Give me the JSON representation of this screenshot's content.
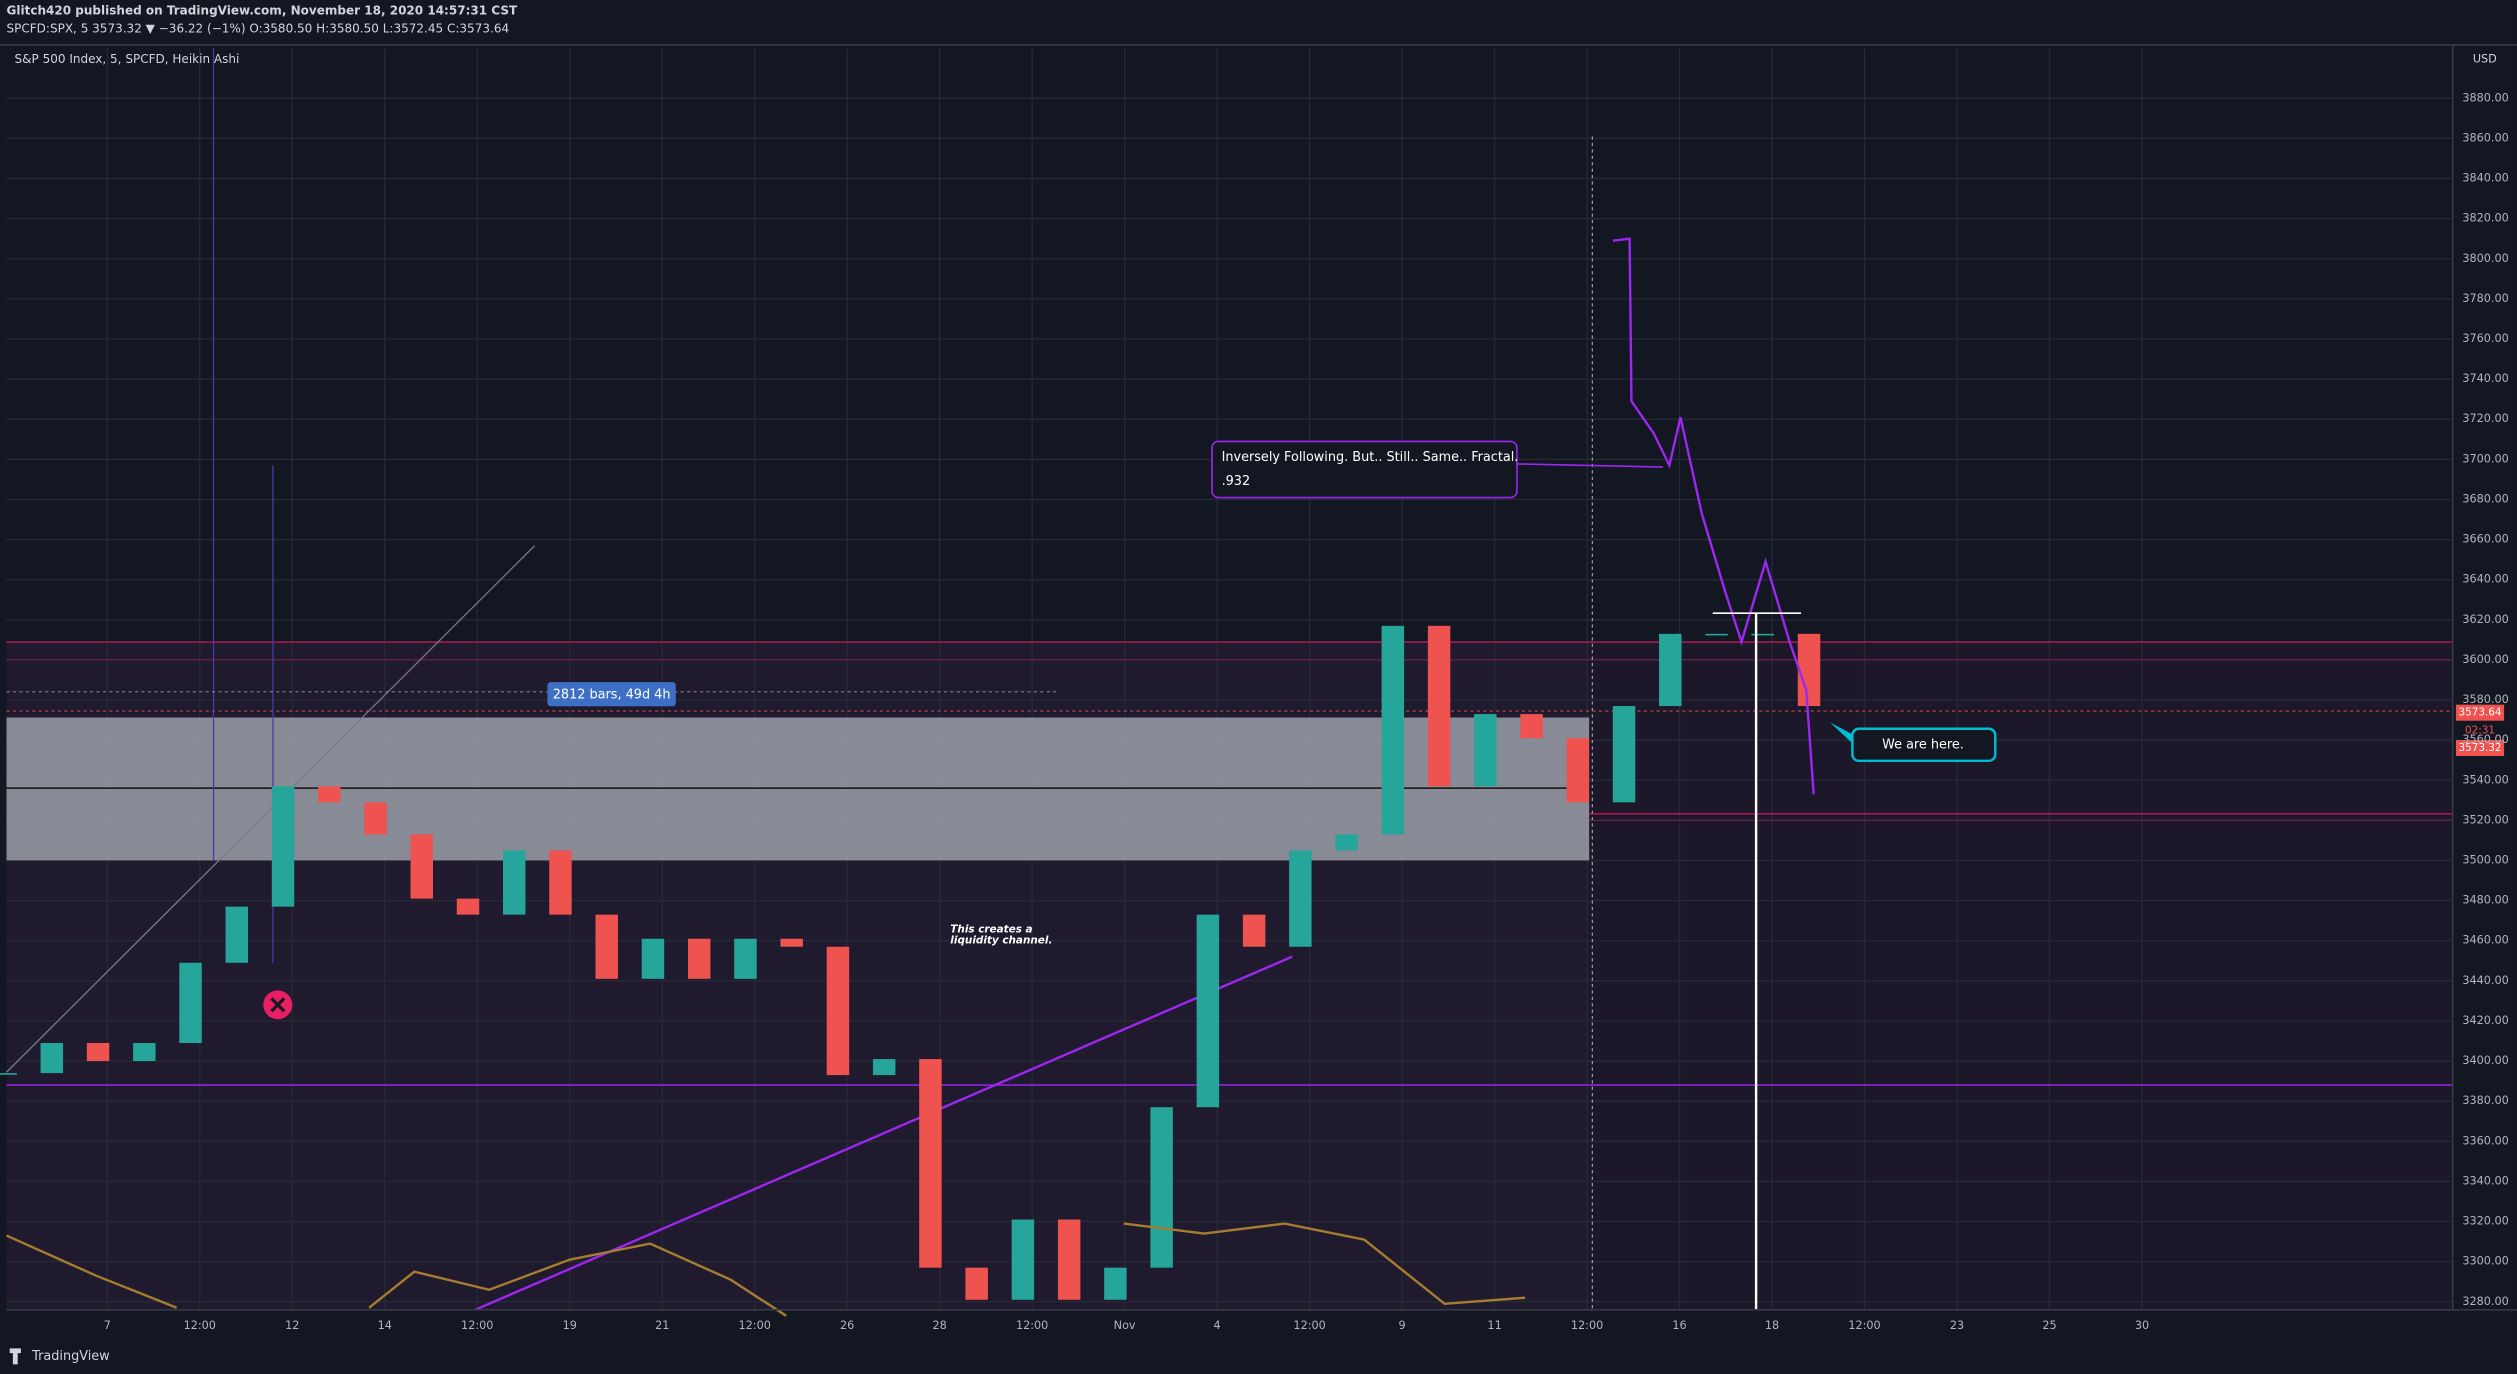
{
  "header": {
    "publisher": "Glitch420 published on TradingView.com, November 18, 2020 14:57:31 CST",
    "quote": "SPCFD:SPX, 5  3573.32 ▼ −36.22 (−1%)  O:3580.50  H:3580.50  L:3572.45  C:3573.64",
    "legend": "S&P 500 Index, 5, SPCFD, Heikin Ashi",
    "currency": "USD"
  },
  "chart_data": {
    "type": "candle-line",
    "ylim": [
      3276,
      3905
    ],
    "yticks": [
      {
        "value": 3280,
        "label": "3280.00"
      },
      {
        "value": 3300,
        "label": "3300.00"
      },
      {
        "value": 3320,
        "label": "3320.00"
      },
      {
        "value": 3340,
        "label": "3340.00"
      },
      {
        "value": 3360,
        "label": "3360.00"
      },
      {
        "value": 3380,
        "label": "3380.00"
      },
      {
        "value": 3400,
        "label": "3400.00"
      },
      {
        "value": 3420,
        "label": "3420.00"
      },
      {
        "value": 3440,
        "label": "3440.00"
      },
      {
        "value": 3460,
        "label": "3460.00"
      },
      {
        "value": 3480,
        "label": "3480.00"
      },
      {
        "value": 3500,
        "label": "3500.00"
      },
      {
        "value": 3520,
        "label": "3520.00"
      },
      {
        "value": 3540,
        "label": "3540.00"
      },
      {
        "value": 3560,
        "label": "3560.00"
      },
      {
        "value": 3580,
        "label": "3580.00"
      },
      {
        "value": 3600,
        "label": "3600.00"
      },
      {
        "value": 3620,
        "label": "3620.00"
      },
      {
        "value": 3640,
        "label": "3640.00"
      },
      {
        "value": 3660,
        "label": "3660.00"
      },
      {
        "value": 3680,
        "label": "3680.00"
      },
      {
        "value": 3700,
        "label": "3700.00"
      },
      {
        "value": 3720,
        "label": "3720.00"
      },
      {
        "value": 3740,
        "label": "3740.00"
      },
      {
        "value": 3760,
        "label": "3760.00"
      },
      {
        "value": 3780,
        "label": "3780.00"
      },
      {
        "value": 3800,
        "label": "3800.00"
      },
      {
        "value": 3820,
        "label": "3820.00"
      },
      {
        "value": 3840,
        "label": "3840.00"
      },
      {
        "value": 3860,
        "label": "3860.00"
      },
      {
        "value": 3880,
        "label": "3880.00"
      }
    ],
    "xlim": [
      -1.09,
      25.36
    ],
    "xticks": [
      {
        "value": 0,
        "label": "7"
      },
      {
        "value": 1,
        "label": "12:00"
      },
      {
        "value": 2,
        "label": "12"
      },
      {
        "value": 3,
        "label": "14"
      },
      {
        "value": 4,
        "label": "12:00"
      },
      {
        "value": 5,
        "label": "19"
      },
      {
        "value": 6,
        "label": "21"
      },
      {
        "value": 7,
        "label": "12:00"
      },
      {
        "value": 8,
        "label": "26"
      },
      {
        "value": 9,
        "label": "28"
      },
      {
        "value": 10,
        "label": "12:00"
      },
      {
        "value": 11,
        "label": "Nov"
      },
      {
        "value": 12,
        "label": "4"
      },
      {
        "value": 13,
        "label": "12:00"
      },
      {
        "value": 14,
        "label": "9"
      },
      {
        "value": 15,
        "label": "11"
      },
      {
        "value": 16,
        "label": "12:00"
      },
      {
        "value": 17,
        "label": "16"
      },
      {
        "value": 18,
        "label": "18"
      },
      {
        "value": 19,
        "label": "12:00"
      },
      {
        "value": 20,
        "label": "23"
      },
      {
        "value": 21,
        "label": "25"
      },
      {
        "value": 22,
        "label": "30"
      }
    ],
    "grid": true,
    "series": [
      {
        "style": "candle",
        "color": "#26a69a",
        "down_color": "#ef5350",
        "x": [
          -1.1,
          -0.6,
          -0.1,
          0.4,
          0.9,
          1.4,
          1.9,
          2.4,
          2.9,
          3.4,
          3.9,
          4.4,
          4.9,
          5.4,
          5.9,
          6.4,
          6.9,
          7.4,
          7.9,
          8.4,
          8.9,
          9.4,
          9.9,
          10.4,
          10.9,
          11.4,
          11.9,
          12.4,
          12.9,
          13.4,
          13.9,
          14.4,
          14.9,
          15.4,
          15.9,
          16.4,
          16.9,
          17.4,
          17.9,
          18.4
        ],
        "values": [
          3394,
          3409,
          3400,
          3409,
          3449,
          3477,
          3537,
          3529,
          3513,
          3481,
          3473,
          3505,
          3473,
          3441,
          3461,
          3441,
          3461,
          3457,
          3393,
          3401,
          3297,
          3281,
          3321,
          3281,
          3297,
          3377,
          3473,
          3457,
          3505,
          3513,
          3617,
          3537,
          3573,
          3561,
          3529,
          3577,
          3613,
          3613,
          3613,
          3577
        ]
      },
      {
        "style": "line",
        "color": "#9c27f0",
        "x": [
          16.28,
          16.46,
          16.48,
          16.72,
          16.89,
          17.01,
          17.24,
          17.5,
          17.67,
          17.93,
          18.19,
          18.37,
          18.45
        ],
        "values": [
          3809,
          3810,
          3729,
          3713,
          3697,
          3721,
          3673,
          3633,
          3609,
          3649,
          3609,
          3585,
          3533
        ]
      },
      {
        "style": "line",
        "color": "#a67c2e",
        "x": [
          -1.09,
          -0.12,
          0.75,
          1.8,
          2.83,
          3.32,
          4.13,
          5.0,
          5.87,
          6.74,
          7.34,
          9.0,
          10.99,
          11.86,
          12.73,
          13.59,
          14.46,
          15.33
        ],
        "values": [
          3313,
          3293,
          3277,
          null,
          3277,
          3295,
          3286,
          3301,
          3309,
          3291,
          3273,
          null,
          3319,
          3314,
          3319,
          3311,
          3279,
          3282
        ]
      }
    ]
  },
  "price_tags": {
    "last": "3573.64",
    "countdown": "02:31",
    "close": "3573.32"
  },
  "annotations": {
    "range": "2812 bars, 49d 4h",
    "fractal_line1": "Inversely Following. But.. Still.. Same.. Fractal.",
    "fractal_line2": ".932",
    "channel_line1": "This creates a",
    "channel_line2": "liquidity channel.",
    "here": "We are here."
  },
  "footer": {
    "brand": "TradingView"
  }
}
